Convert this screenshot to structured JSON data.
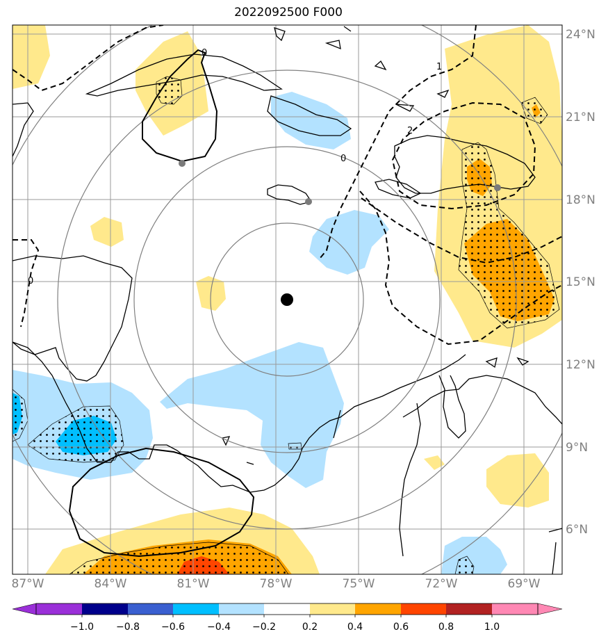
{
  "title": "2022092500 F000",
  "map": {
    "lat_labels": [
      "24°N",
      "21°N",
      "18°N",
      "15°N",
      "12°N",
      "9°N",
      "6°N"
    ],
    "lon_labels": [
      "87°W",
      "84°W",
      "81°W",
      "78°W",
      "75°W",
      "72°W",
      "69°W"
    ],
    "lon_range": [
      -87.3,
      -67.4
    ],
    "lat_range": [
      4.5,
      24.4
    ],
    "storm_center": {
      "lon": -77.8,
      "lat": 14.35
    },
    "grid": true
  },
  "contour_labels": [
    "0",
    "0",
    "0",
    "1",
    "2"
  ],
  "colorbar": {
    "ticks": [
      "−1.0",
      "−0.8",
      "−0.6",
      "−0.4",
      "−0.2",
      "0.2",
      "0.4",
      "0.6",
      "0.8",
      "1.0"
    ],
    "colors": [
      "#9a2fd8",
      "#00008b",
      "#3a5fd0",
      "#00bfff",
      "#b3e2ff",
      "#ffffff",
      "#ffe98c",
      "#ffa500",
      "#ff4500",
      "#b22222",
      "#ff88b4"
    ]
  }
}
